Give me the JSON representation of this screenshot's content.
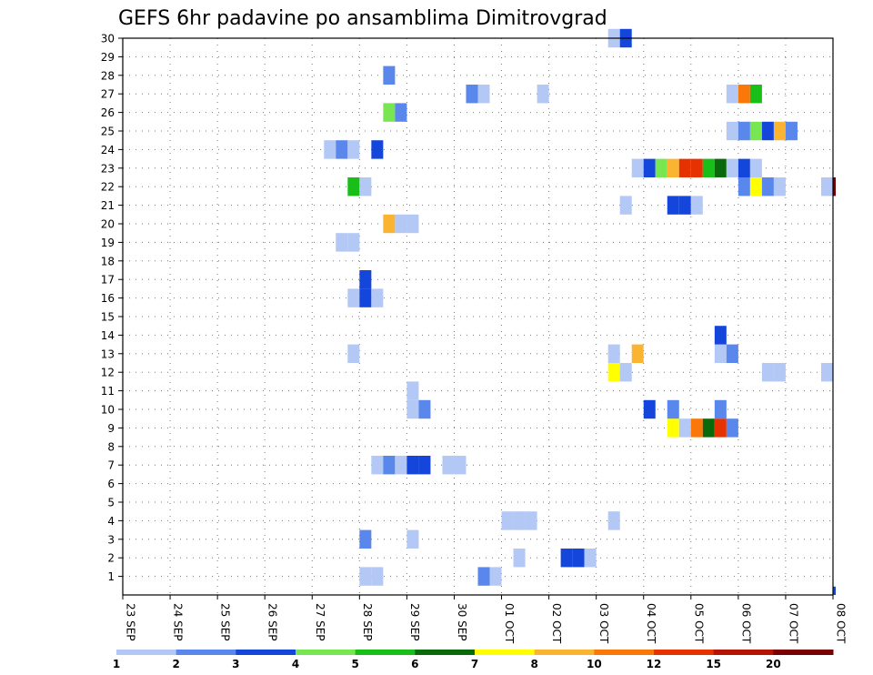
{
  "chart_data": {
    "type": "heatmap",
    "title": "GEFS 6hr padavine po ansamblima Dimitrovgrad",
    "xlabel": "",
    "ylabel": "",
    "x_tick_labels": [
      "23 SEP",
      "24 SEP",
      "25 SEP",
      "26 SEP",
      "27 SEP",
      "28 SEP",
      "29 SEP",
      "30 SEP",
      "01 OCT",
      "02 OCT",
      "03 OCT",
      "04 OCT",
      "05 OCT",
      "06 OCT",
      "07 OCT",
      "08 OCT"
    ],
    "y_tick_labels": [
      "1",
      "2",
      "3",
      "4",
      "5",
      "6",
      "7",
      "8",
      "9",
      "10",
      "11",
      "12",
      "13",
      "14",
      "15",
      "16",
      "17",
      "18",
      "19",
      "20",
      "21",
      "22",
      "23",
      "24",
      "25",
      "26",
      "27",
      "28",
      "29",
      "30"
    ],
    "x_range_days": [
      0,
      15
    ],
    "y_range": [
      0,
      30
    ],
    "grid": true,
    "legend_position": "bottom",
    "legend_labels": [
      "1",
      "2",
      "3",
      "4",
      "5",
      "6",
      "7",
      "8",
      "10",
      "12",
      "15",
      "20"
    ],
    "palette": [
      "#b4c8f5",
      "#5a87eb",
      "#1446dc",
      "#78e650",
      "#19be19",
      "#0a690a",
      "#ffff00",
      "#fab432",
      "#fa780a",
      "#e63200",
      "#b41400",
      "#780000"
    ],
    "cell_fields": [
      "member",
      "time_day",
      "precip_class"
    ],
    "cells": [
      [
        1,
        5.0,
        0
      ],
      [
        1,
        5.25,
        0
      ],
      [
        1,
        7.5,
        1
      ],
      [
        1,
        7.75,
        0
      ],
      [
        2,
        8.25,
        0
      ],
      [
        2,
        9.25,
        2
      ],
      [
        2,
        9.5,
        2
      ],
      [
        2,
        9.75,
        0
      ],
      [
        3,
        5.0,
        1
      ],
      [
        3,
        6.0,
        0
      ],
      [
        4,
        8.0,
        0
      ],
      [
        4,
        8.25,
        0
      ],
      [
        4,
        8.5,
        0
      ],
      [
        4,
        10.25,
        0
      ],
      [
        7,
        5.25,
        0
      ],
      [
        7,
        5.5,
        1
      ],
      [
        7,
        5.75,
        0
      ],
      [
        7,
        6.0,
        2
      ],
      [
        7,
        6.25,
        2
      ],
      [
        7,
        6.75,
        0
      ],
      [
        7,
        7.0,
        0
      ],
      [
        9,
        11.5,
        6
      ],
      [
        9,
        11.75,
        0
      ],
      [
        9,
        12.0,
        8
      ],
      [
        9,
        12.25,
        5
      ],
      [
        9,
        12.5,
        9
      ],
      [
        9,
        12.75,
        1
      ],
      [
        10,
        6.0,
        0
      ],
      [
        10,
        6.25,
        1
      ],
      [
        10,
        11.0,
        2
      ],
      [
        10,
        11.5,
        1
      ],
      [
        10,
        12.5,
        1
      ],
      [
        11,
        6.0,
        0
      ],
      [
        12,
        10.25,
        6
      ],
      [
        12,
        10.5,
        0
      ],
      [
        12,
        13.5,
        0
      ],
      [
        12,
        13.75,
        0
      ],
      [
        12,
        14.75,
        0
      ],
      [
        13,
        4.75,
        0
      ],
      [
        13,
        10.25,
        0
      ],
      [
        13,
        10.75,
        7
      ],
      [
        13,
        12.5,
        0
      ],
      [
        13,
        12.75,
        1
      ],
      [
        14,
        12.5,
        2
      ],
      [
        16,
        4.75,
        0
      ],
      [
        16,
        5.0,
        2
      ],
      [
        16,
        5.25,
        0
      ],
      [
        17,
        5.0,
        2
      ],
      [
        19,
        4.5,
        0
      ],
      [
        19,
        4.75,
        0
      ],
      [
        20,
        5.5,
        7
      ],
      [
        20,
        5.75,
        0
      ],
      [
        20,
        6.0,
        0
      ],
      [
        21,
        10.5,
        0
      ],
      [
        21,
        11.5,
        2
      ],
      [
        21,
        11.75,
        2
      ],
      [
        21,
        12.0,
        0
      ],
      [
        22,
        4.75,
        4
      ],
      [
        22,
        5.0,
        0
      ],
      [
        22,
        13.0,
        1
      ],
      [
        22,
        13.25,
        6
      ],
      [
        22,
        13.5,
        1
      ],
      [
        22,
        13.75,
        0
      ],
      [
        22,
        14.75,
        0
      ],
      [
        22,
        15.0,
        11
      ],
      [
        23,
        10.75,
        0
      ],
      [
        23,
        11.0,
        2
      ],
      [
        23,
        11.25,
        3
      ],
      [
        23,
        11.5,
        7
      ],
      [
        23,
        11.75,
        9
      ],
      [
        23,
        12.0,
        9
      ],
      [
        23,
        12.25,
        4
      ],
      [
        23,
        12.5,
        5
      ],
      [
        23,
        12.75,
        0
      ],
      [
        23,
        13.0,
        2
      ],
      [
        23,
        13.25,
        0
      ],
      [
        24,
        4.25,
        0
      ],
      [
        24,
        4.5,
        1
      ],
      [
        24,
        4.75,
        0
      ],
      [
        24,
        5.25,
        2
      ],
      [
        25,
        12.75,
        0
      ],
      [
        25,
        13.0,
        1
      ],
      [
        25,
        13.25,
        3
      ],
      [
        25,
        13.5,
        2
      ],
      [
        25,
        13.75,
        7
      ],
      [
        25,
        14.0,
        1
      ],
      [
        26,
        5.5,
        3
      ],
      [
        26,
        5.75,
        1
      ],
      [
        27,
        7.25,
        1
      ],
      [
        27,
        7.5,
        0
      ],
      [
        27,
        8.75,
        0
      ],
      [
        27,
        12.75,
        0
      ],
      [
        27,
        13.0,
        8
      ],
      [
        27,
        13.25,
        4
      ],
      [
        28,
        5.5,
        1
      ],
      [
        30,
        10.25,
        0
      ],
      [
        30,
        10.5,
        2
      ],
      [
        0,
        15.0,
        2
      ]
    ]
  }
}
